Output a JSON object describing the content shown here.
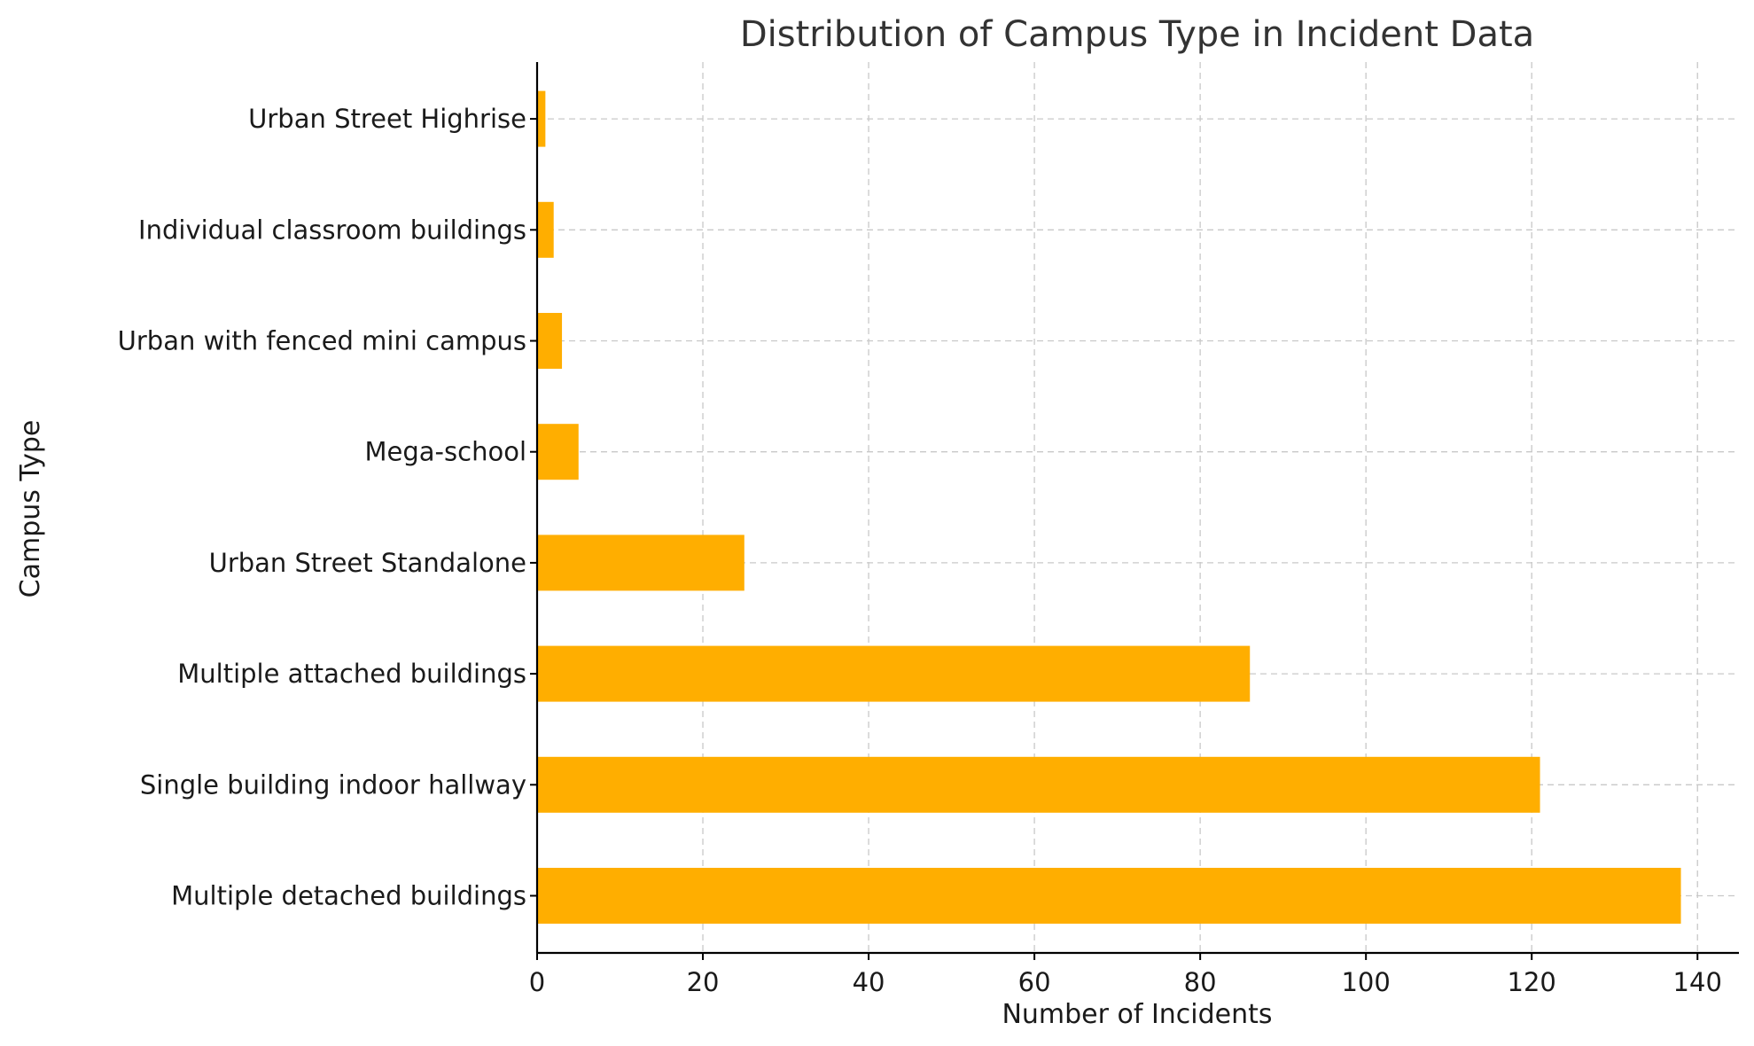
{
  "chart_data": {
    "type": "bar",
    "orientation": "horizontal",
    "title": "Distribution of Campus Type in Incident Data",
    "xlabel": "Number of Incidents",
    "ylabel": "Campus Type",
    "categories": [
      "Multiple detached buildings",
      "Single building indoor hallway",
      "Multiple attached buildings",
      "Urban Street Standalone",
      "Mega-school",
      "Urban with fenced mini campus",
      "Individual classroom buildings",
      "Urban Street Highrise"
    ],
    "values": [
      138,
      121,
      86,
      25,
      5,
      3,
      2,
      1
    ],
    "xlim": [
      0,
      145
    ],
    "xticks": [
      0,
      20,
      40,
      60,
      80,
      100,
      120,
      140
    ],
    "grid": true,
    "legend": "none",
    "bar_color": "#FFAE00"
  }
}
